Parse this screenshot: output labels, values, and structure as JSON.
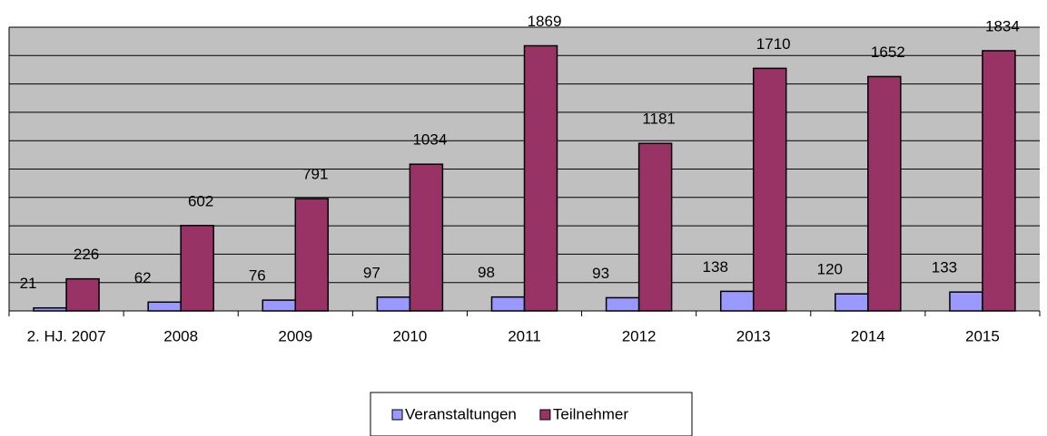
{
  "chart_data": {
    "type": "bar",
    "categories": [
      "2. HJ. 2007",
      "2008",
      "2009",
      "2010",
      "2011",
      "2012",
      "2013",
      "2014",
      "2015"
    ],
    "series": [
      {
        "name": "Veranstaltungen",
        "color": "#9999ff",
        "values": [
          21,
          62,
          76,
          97,
          98,
          93,
          138,
          120,
          133
        ]
      },
      {
        "name": "Teilnehmer",
        "color": "#993366",
        "values": [
          226,
          602,
          791,
          1034,
          1869,
          1181,
          1710,
          1652,
          1834
        ]
      }
    ],
    "ylim": [
      0,
      2000
    ],
    "yticks": [
      0,
      200,
      400,
      600,
      800,
      1000,
      1200,
      1400,
      1600,
      1800,
      2000
    ],
    "grid": true,
    "legend": "bottom"
  }
}
